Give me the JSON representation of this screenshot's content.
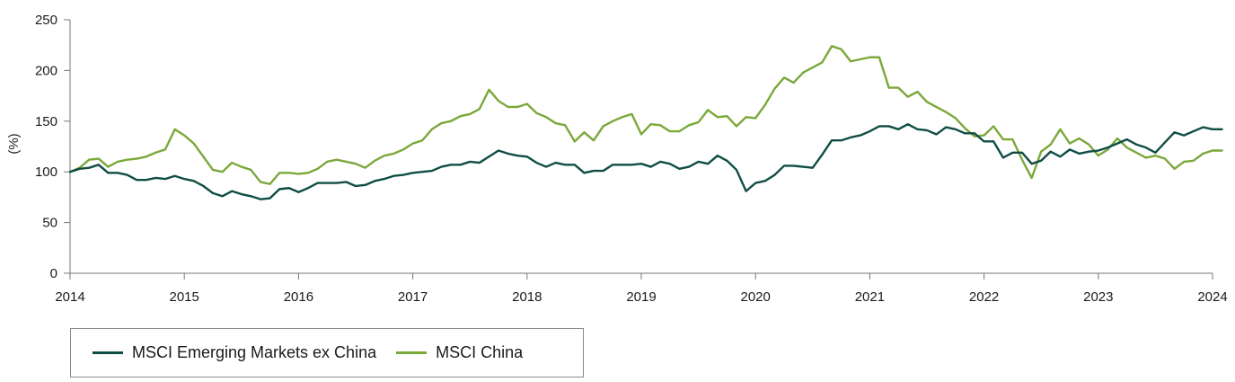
{
  "chart_data": {
    "type": "line",
    "title": "",
    "xlabel": "",
    "ylabel": "(%)",
    "ylim": [
      0,
      250
    ],
    "xlim": [
      2014,
      2024
    ],
    "yticks": [
      "0",
      "50",
      "100",
      "150",
      "200",
      "250"
    ],
    "xticks": [
      "2014",
      "2015",
      "2016",
      "2017",
      "2018",
      "2019",
      "2020",
      "2021",
      "2022",
      "2023",
      "2024"
    ],
    "grid": false,
    "legend_position": "bottom-left",
    "series": [
      {
        "name": "MSCI Emerging Markets ex China",
        "color": "#0f4d45",
        "x": [
          2014.0,
          2014.083,
          2014.167,
          2014.25,
          2014.333,
          2014.417,
          2014.5,
          2014.583,
          2014.667,
          2014.75,
          2014.833,
          2014.917,
          2015.0,
          2015.083,
          2015.167,
          2015.25,
          2015.333,
          2015.417,
          2015.5,
          2015.583,
          2015.667,
          2015.75,
          2015.833,
          2015.917,
          2016.0,
          2016.083,
          2016.167,
          2016.25,
          2016.333,
          2016.417,
          2016.5,
          2016.583,
          2016.667,
          2016.75,
          2016.833,
          2016.917,
          2017.0,
          2017.083,
          2017.167,
          2017.25,
          2017.333,
          2017.417,
          2017.5,
          2017.583,
          2017.667,
          2017.75,
          2017.833,
          2017.917,
          2018.0,
          2018.083,
          2018.167,
          2018.25,
          2018.333,
          2018.417,
          2018.5,
          2018.583,
          2018.667,
          2018.75,
          2018.833,
          2018.917,
          2019.0,
          2019.083,
          2019.167,
          2019.25,
          2019.333,
          2019.417,
          2019.5,
          2019.583,
          2019.667,
          2019.75,
          2019.833,
          2019.917,
          2020.0,
          2020.083,
          2020.167,
          2020.25,
          2020.333,
          2020.417,
          2020.5,
          2020.583,
          2020.667,
          2020.75,
          2020.833,
          2020.917,
          2021.0,
          2021.083,
          2021.167,
          2021.25,
          2021.333,
          2021.417,
          2021.5,
          2021.583,
          2021.667,
          2021.75,
          2021.833,
          2021.917,
          2022.0,
          2022.083,
          2022.167,
          2022.25,
          2022.333,
          2022.417,
          2022.5,
          2022.583,
          2022.667,
          2022.75,
          2022.833,
          2022.917,
          2023.0,
          2023.083,
          2023.167,
          2023.25,
          2023.333,
          2023.417,
          2023.5,
          2023.583,
          2023.667,
          2023.75,
          2023.833,
          2023.917,
          2024.0,
          2024.083
        ],
        "values": [
          100,
          103,
          104,
          107,
          99,
          99,
          97,
          92,
          92,
          94,
          93,
          96,
          93,
          91,
          86,
          79,
          76,
          81,
          78,
          76,
          73,
          74,
          83,
          84,
          80,
          84,
          89,
          89,
          89,
          90,
          86,
          87,
          91,
          93,
          96,
          97,
          99,
          100,
          101,
          105,
          107,
          107,
          110,
          109,
          115,
          121,
          118,
          116,
          115,
          109,
          105,
          109,
          107,
          107,
          99,
          101,
          101,
          107,
          107,
          107,
          108,
          105,
          110,
          108,
          103,
          105,
          110,
          108,
          116,
          111,
          102,
          81,
          89,
          91,
          97,
          106,
          106,
          105,
          104,
          117,
          131,
          131,
          134,
          136,
          140,
          145,
          145,
          142,
          147,
          142,
          141,
          137,
          144,
          142,
          138,
          138,
          130,
          130,
          114,
          119,
          119,
          108,
          111,
          120,
          115,
          122,
          118,
          120,
          121,
          124,
          128,
          132,
          127,
          124,
          119,
          129,
          139,
          136,
          140,
          144,
          142,
          142
        ]
      },
      {
        "name": "MSCI China",
        "color": "#7aa83a",
        "x": [
          2014.0,
          2014.083,
          2014.167,
          2014.25,
          2014.333,
          2014.417,
          2014.5,
          2014.583,
          2014.667,
          2014.75,
          2014.833,
          2014.917,
          2015.0,
          2015.083,
          2015.167,
          2015.25,
          2015.333,
          2015.417,
          2015.5,
          2015.583,
          2015.667,
          2015.75,
          2015.833,
          2015.917,
          2016.0,
          2016.083,
          2016.167,
          2016.25,
          2016.333,
          2016.417,
          2016.5,
          2016.583,
          2016.667,
          2016.75,
          2016.833,
          2016.917,
          2017.0,
          2017.083,
          2017.167,
          2017.25,
          2017.333,
          2017.417,
          2017.5,
          2017.583,
          2017.667,
          2017.75,
          2017.833,
          2017.917,
          2018.0,
          2018.083,
          2018.167,
          2018.25,
          2018.333,
          2018.417,
          2018.5,
          2018.583,
          2018.667,
          2018.75,
          2018.833,
          2018.917,
          2019.0,
          2019.083,
          2019.167,
          2019.25,
          2019.333,
          2019.417,
          2019.5,
          2019.583,
          2019.667,
          2019.75,
          2019.833,
          2019.917,
          2020.0,
          2020.083,
          2020.167,
          2020.25,
          2020.333,
          2020.417,
          2020.5,
          2020.583,
          2020.667,
          2020.75,
          2020.833,
          2020.917,
          2021.0,
          2021.083,
          2021.167,
          2021.25,
          2021.333,
          2021.417,
          2021.5,
          2021.583,
          2021.667,
          2021.75,
          2021.833,
          2021.917,
          2022.0,
          2022.083,
          2022.167,
          2022.25,
          2022.333,
          2022.417,
          2022.5,
          2022.583,
          2022.667,
          2022.75,
          2022.833,
          2022.917,
          2023.0,
          2023.083,
          2023.167,
          2023.25,
          2023.333,
          2023.417,
          2023.5,
          2023.583,
          2023.667,
          2023.75,
          2023.833,
          2023.917,
          2024.0,
          2024.083
        ],
        "values": [
          100,
          104,
          112,
          113,
          105,
          110,
          112,
          113,
          115,
          119,
          122,
          142,
          136,
          128,
          115,
          102,
          100,
          109,
          105,
          102,
          90,
          88,
          99,
          99,
          98,
          99,
          103,
          110,
          112,
          110,
          108,
          104,
          111,
          116,
          118,
          122,
          128,
          131,
          142,
          148,
          150,
          155,
          157,
          162,
          181,
          170,
          164,
          164,
          167,
          158,
          154,
          148,
          146,
          130,
          139,
          131,
          145,
          150,
          154,
          157,
          137,
          147,
          146,
          140,
          140,
          146,
          149,
          161,
          154,
          155,
          145,
          154,
          153,
          166,
          182,
          193,
          188,
          198,
          203,
          208,
          224,
          221,
          209,
          211,
          213,
          213,
          183,
          183,
          174,
          179,
          169,
          164,
          159,
          153,
          143,
          135,
          136,
          145,
          132,
          132,
          112,
          94,
          120,
          127,
          142,
          128,
          133,
          127,
          116,
          122,
          133,
          124,
          119,
          114,
          116,
          113,
          103,
          110,
          111,
          118,
          121,
          121
        ]
      }
    ]
  }
}
